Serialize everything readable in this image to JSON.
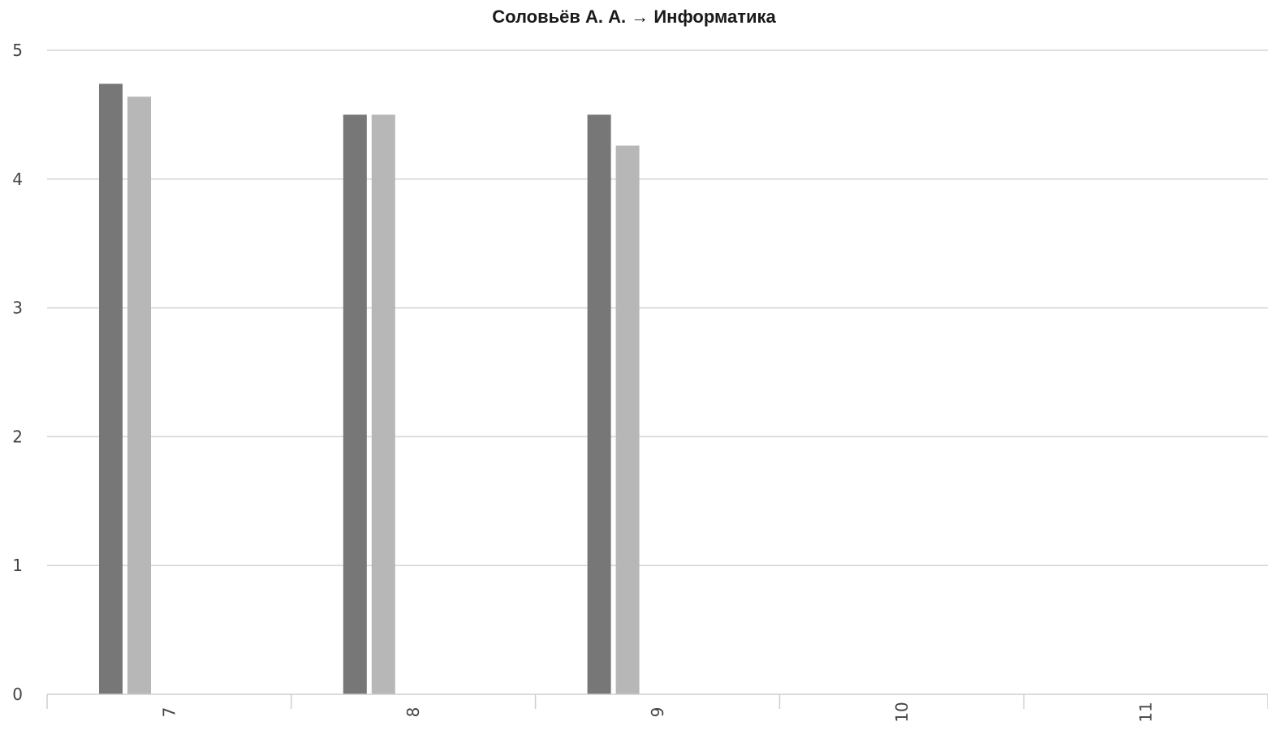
{
  "chart_data": {
    "type": "bar",
    "title": "Соловьёв А. А. → Информатика",
    "categories": [
      "7",
      "8",
      "9",
      "10",
      "11"
    ],
    "series": [
      {
        "values": [
          4.74,
          4.5,
          4.5,
          0,
          0
        ],
        "color": "#777777"
      },
      {
        "values": [
          4.64,
          4.5,
          4.26,
          0,
          0
        ],
        "color": "#b7b7b7"
      }
    ],
    "y_ticks": [
      "0",
      "1",
      "2",
      "3",
      "4",
      "5"
    ],
    "ylim": [
      0,
      5
    ],
    "xlabel": "",
    "ylabel": "",
    "grid": true,
    "x_tick_rotation": "vertical",
    "colors": {
      "grid": "#d4d4d4",
      "axis": "#cfcfcf",
      "tick_text": "#444444"
    }
  }
}
